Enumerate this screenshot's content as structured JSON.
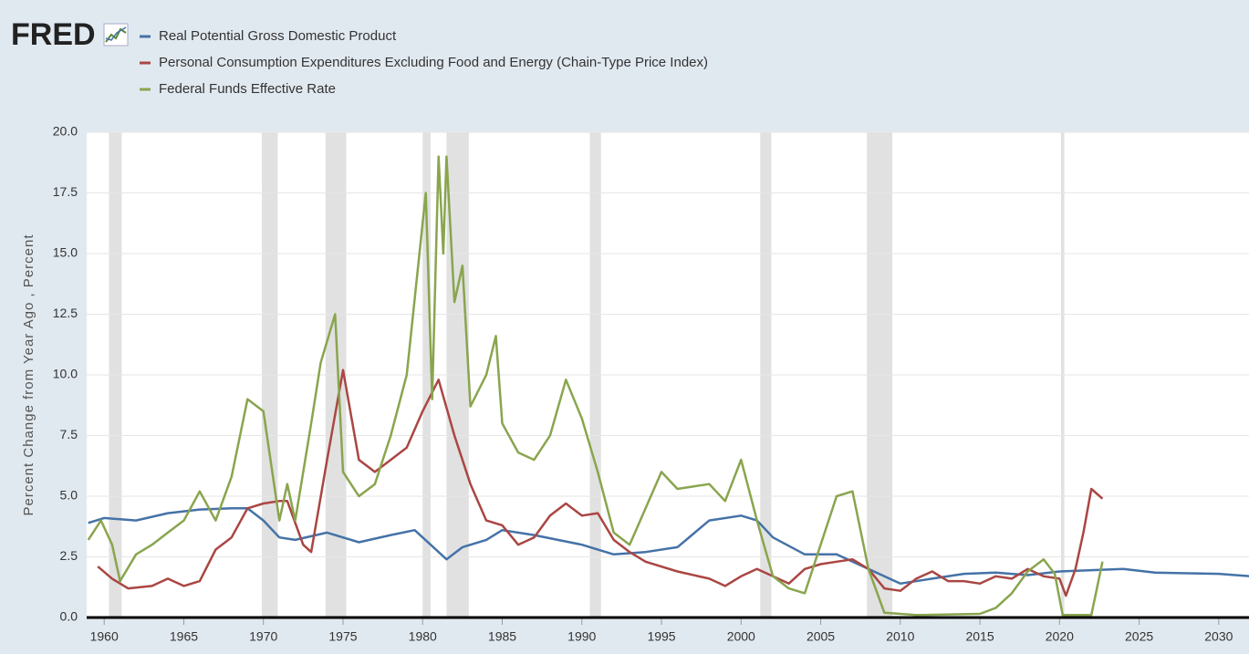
{
  "chart_data": {
    "type": "line",
    "logo": "FRED",
    "y_label": "Percent Change from Year Ago , Percent",
    "xlim": [
      1958.9,
      2031.9
    ],
    "ylim": [
      0,
      20
    ],
    "xticks": [
      1960,
      1965,
      1970,
      1975,
      1980,
      1985,
      1990,
      1995,
      2000,
      2005,
      2010,
      2015,
      2020,
      2025,
      2030
    ],
    "yticks": [
      {
        "value": 0,
        "label": "0.0"
      },
      2.5,
      {
        "value": 5,
        "label": "5.0"
      },
      7.5,
      {
        "value": 10,
        "label": "10.0"
      },
      12.5,
      {
        "value": 15,
        "label": "15.0"
      },
      17.5,
      {
        "value": 20,
        "label": "20.0"
      }
    ],
    "grid": true,
    "recessions": [
      [
        1960.3,
        1961.1
      ],
      [
        1969.9,
        1970.9
      ],
      [
        1973.9,
        1975.2
      ],
      [
        1980.0,
        1980.5
      ],
      [
        1981.5,
        1982.9
      ],
      [
        1990.5,
        1991.2
      ],
      [
        2001.2,
        2001.9
      ],
      [
        2007.9,
        2009.5
      ],
      [
        2020.1,
        2020.3
      ]
    ],
    "series": [
      {
        "name": "Real Potential Gross Domestic Product",
        "color": "#4572a7",
        "x": [
          1959,
          1960,
          1962,
          1964,
          1966,
          1968,
          1969,
          1970,
          1971,
          1972,
          1974,
          1976,
          1978,
          1979.5,
          1980.5,
          1981.5,
          1982.5,
          1984,
          1985,
          1987,
          1990,
          1992,
          1994,
          1996,
          1998,
          2000,
          2001,
          2002,
          2004,
          2006,
          2008,
          2010,
          2012,
          2014,
          2016,
          2018,
          2020,
          2022,
          2024,
          2026,
          2030,
          2032
        ],
        "values": [
          3.9,
          4.1,
          4.0,
          4.3,
          4.45,
          4.5,
          4.5,
          4.0,
          3.3,
          3.2,
          3.5,
          3.1,
          3.4,
          3.6,
          3.0,
          2.4,
          2.9,
          3.2,
          3.6,
          3.4,
          3.0,
          2.6,
          2.7,
          2.9,
          4.0,
          4.2,
          4.0,
          3.3,
          2.6,
          2.6,
          2.0,
          1.4,
          1.6,
          1.8,
          1.85,
          1.75,
          1.9,
          1.95,
          2.0,
          1.85,
          1.8,
          1.7
        ]
      },
      {
        "name": "Personal Consumption Expenditures Excluding Food and Energy (Chain-Type Price Index)",
        "color": "#aa4643",
        "x": [
          1959.6,
          1960.5,
          1961.5,
          1963,
          1964,
          1965,
          1966,
          1967,
          1968,
          1969,
          1970,
          1971,
          1971.5,
          1972.5,
          1973,
          1974,
          1975,
          1976,
          1977,
          1978,
          1979,
          1980,
          1981,
          1982,
          1983,
          1984,
          1985,
          1986,
          1987,
          1988,
          1989,
          1990,
          1991,
          1992,
          1993,
          1994,
          1996,
          1998,
          1999,
          2000,
          2001,
          2002,
          2003,
          2004,
          2005,
          2006,
          2007,
          2008,
          2009,
          2010,
          2011,
          2012,
          2013,
          2014,
          2015,
          2016,
          2017,
          2018,
          2019,
          2020,
          2020.4,
          2021,
          2021.5,
          2022,
          2022.7
        ],
        "values": [
          2.1,
          1.6,
          1.2,
          1.3,
          1.6,
          1.3,
          1.5,
          2.8,
          3.3,
          4.5,
          4.7,
          4.8,
          4.8,
          3.0,
          2.7,
          6.5,
          10.2,
          6.5,
          6.0,
          6.5,
          7.0,
          8.5,
          9.8,
          7.5,
          5.5,
          4.0,
          3.8,
          3.0,
          3.3,
          4.2,
          4.7,
          4.2,
          4.3,
          3.2,
          2.7,
          2.3,
          1.9,
          1.6,
          1.3,
          1.7,
          2.0,
          1.7,
          1.4,
          2.0,
          2.2,
          2.3,
          2.4,
          2.0,
          1.2,
          1.1,
          1.6,
          1.9,
          1.5,
          1.5,
          1.4,
          1.7,
          1.6,
          2.0,
          1.7,
          1.6,
          0.9,
          2.0,
          3.5,
          5.3,
          4.9
        ]
      },
      {
        "name": "Federal Funds Effective Rate",
        "color": "#89a54e",
        "x": [
          1959,
          1959.8,
          1960.5,
          1961,
          1962,
          1963,
          1964,
          1965,
          1966,
          1967,
          1968,
          1969,
          1970,
          1971,
          1971.5,
          1972,
          1973,
          1973.6,
          1974.5,
          1975,
          1976,
          1977,
          1978,
          1979,
          1980.2,
          1980.6,
          1981,
          1981.3,
          1981.5,
          1982,
          1982.5,
          1983,
          1984,
          1984.6,
          1985,
          1986,
          1987,
          1988,
          1989,
          1990,
          1991,
          1992,
          1993,
          1994,
          1995,
          1996,
          1998,
          1999,
          2000,
          2001,
          2002,
          2003,
          2004,
          2005,
          2006,
          2007,
          2008,
          2009,
          2011,
          2015,
          2016,
          2017,
          2018,
          2019,
          2019.7,
          2020.2,
          2022,
          2022.7
        ],
        "values": [
          3.2,
          4.0,
          3.0,
          1.5,
          2.6,
          3.0,
          3.5,
          4.0,
          5.2,
          4.0,
          5.8,
          9.0,
          8.5,
          4.0,
          5.5,
          4.0,
          8.0,
          10.5,
          12.5,
          6.0,
          5.0,
          5.5,
          7.5,
          10.0,
          17.5,
          9.0,
          19.0,
          15.0,
          19.0,
          13.0,
          14.5,
          8.7,
          10.0,
          11.6,
          8.0,
          6.8,
          6.5,
          7.5,
          9.8,
          8.2,
          6.0,
          3.5,
          3.0,
          4.5,
          6.0,
          5.3,
          5.5,
          4.8,
          6.5,
          4.0,
          1.7,
          1.2,
          1.0,
          3.0,
          5.0,
          5.2,
          2.0,
          0.2,
          0.1,
          0.15,
          0.4,
          1.0,
          1.9,
          2.4,
          1.8,
          0.1,
          0.1,
          2.3
        ]
      }
    ]
  }
}
